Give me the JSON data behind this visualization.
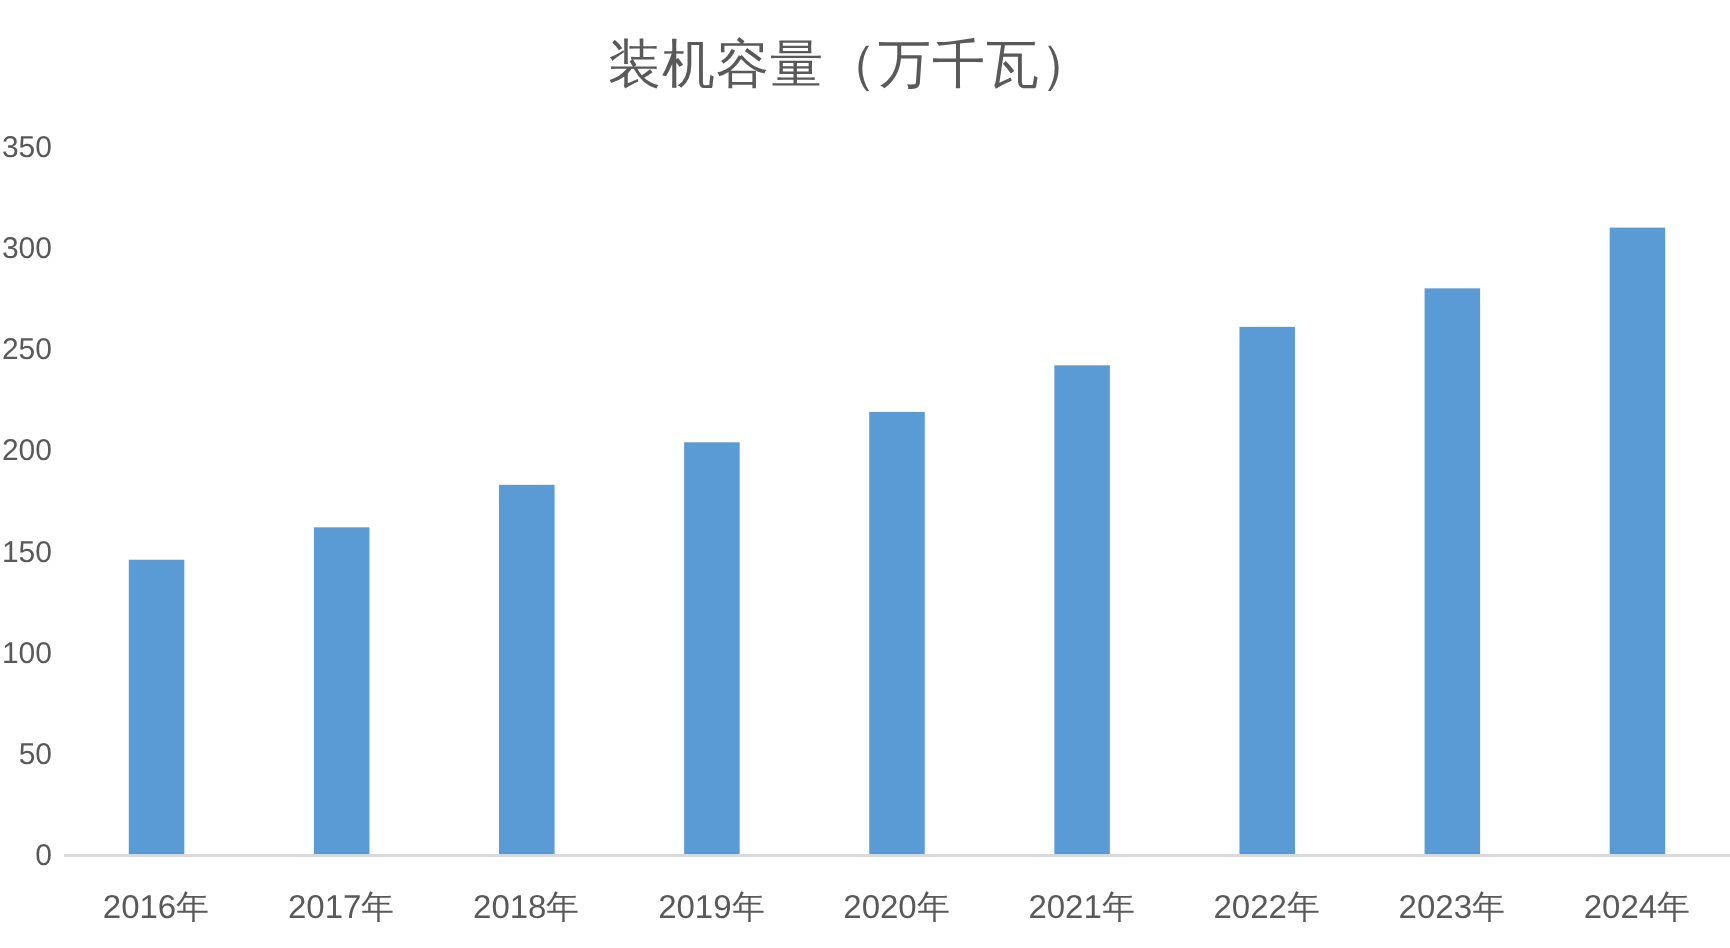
{
  "chart_data": {
    "type": "bar",
    "title": "装机容量（万千瓦）",
    "categories": [
      "2016年",
      "2017年",
      "2018年",
      "2019年",
      "2020年",
      "2021年",
      "2022年",
      "2023年",
      "2024年"
    ],
    "values": [
      146,
      162,
      183,
      204,
      219,
      242,
      261,
      280,
      310
    ],
    "color": "#5b9bd5",
    "ylim": [
      0,
      350
    ],
    "yticks": [
      0,
      50,
      100,
      150,
      200,
      250,
      300,
      350
    ]
  }
}
